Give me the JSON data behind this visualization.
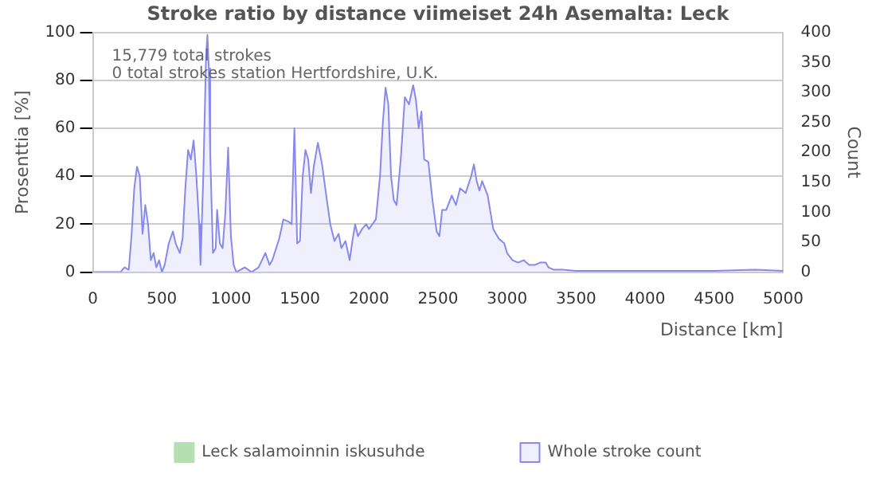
{
  "chart_data": {
    "type": "area",
    "title": "Stroke ratio by distance viimeiset 24h Asemalta: Leck",
    "xlabel": "Distance [km]",
    "ylabel": "Prosenttia [%]",
    "y2label": "Count",
    "annotations": [
      "15,779 total strokes",
      "0 total strokes station Hertfordshire, U.K."
    ],
    "x": [
      0,
      200,
      230,
      260,
      280,
      300,
      320,
      340,
      360,
      380,
      400,
      420,
      440,
      460,
      480,
      500,
      520,
      550,
      580,
      600,
      630,
      650,
      670,
      690,
      710,
      730,
      750,
      770,
      780,
      800,
      820,
      830,
      840,
      850,
      870,
      890,
      900,
      920,
      940,
      960,
      980,
      1000,
      1020,
      1040,
      1100,
      1150,
      1200,
      1250,
      1280,
      1300,
      1350,
      1380,
      1420,
      1440,
      1460,
      1480,
      1500,
      1520,
      1540,
      1560,
      1580,
      1600,
      1630,
      1660,
      1700,
      1720,
      1750,
      1780,
      1800,
      1830,
      1860,
      1880,
      1900,
      1920,
      1950,
      1980,
      2000,
      2050,
      2080,
      2100,
      2120,
      2140,
      2160,
      2180,
      2200,
      2230,
      2260,
      2290,
      2320,
      2340,
      2360,
      2380,
      2400,
      2430,
      2460,
      2490,
      2510,
      2530,
      2560,
      2600,
      2630,
      2660,
      2700,
      2740,
      2760,
      2780,
      2800,
      2820,
      2860,
      2880,
      2900,
      2940,
      2980,
      3000,
      3040,
      3080,
      3120,
      3160,
      3200,
      3240,
      3280,
      3300,
      3340,
      3400,
      3500,
      3600,
      3800,
      4000,
      4200,
      4500,
      4800,
      5000
    ],
    "series": [
      {
        "name": "Leck salamoinnin iskusuhde",
        "type": "line",
        "color": "#b3dfb3",
        "values": [
          null,
          null,
          null,
          null,
          null,
          null,
          null,
          null,
          null,
          null,
          null,
          null,
          null,
          null,
          null,
          null,
          null,
          null,
          null,
          null,
          null,
          null,
          null,
          null,
          null,
          null,
          null,
          null,
          null,
          null,
          null,
          null,
          null,
          null,
          null,
          null,
          null,
          null,
          null,
          null,
          null,
          null,
          null,
          null,
          null,
          null,
          null,
          null,
          null,
          null,
          null,
          null,
          null,
          null,
          null,
          null,
          null,
          null,
          null,
          null,
          null,
          null,
          null,
          null,
          null,
          null,
          null,
          null,
          null,
          null,
          null,
          null,
          null,
          null,
          null,
          null,
          null,
          null,
          null,
          null,
          null,
          null,
          null,
          null,
          null,
          null,
          null,
          null,
          null,
          null,
          null,
          null,
          null,
          null,
          null,
          null,
          null,
          null,
          null,
          null,
          null,
          null,
          null,
          null,
          null,
          null,
          null,
          null,
          null,
          null,
          null,
          null,
          null,
          null,
          null,
          null,
          null,
          null,
          null,
          null,
          null,
          null,
          null,
          null,
          null,
          null,
          null,
          null,
          null,
          null,
          null,
          null
        ]
      },
      {
        "name": "Whole stroke count",
        "type": "area",
        "axis": "y2",
        "color": "#8888ee",
        "values": [
          0,
          0,
          8,
          4,
          60,
          140,
          176,
          160,
          64,
          112,
          80,
          20,
          32,
          8,
          20,
          0,
          12,
          48,
          68,
          48,
          32,
          56,
          140,
          204,
          188,
          220,
          160,
          80,
          12,
          160,
          360,
          396,
          340,
          200,
          32,
          40,
          104,
          48,
          40,
          100,
          208,
          60,
          12,
          0,
          8,
          0,
          8,
          32,
          12,
          20,
          56,
          88,
          84,
          80,
          240,
          48,
          52,
          160,
          204,
          188,
          132,
          176,
          216,
          180,
          112,
          80,
          52,
          64,
          40,
          52,
          20,
          52,
          80,
          60,
          72,
          80,
          72,
          88,
          160,
          248,
          308,
          280,
          160,
          120,
          112,
          188,
          292,
          280,
          312,
          288,
          240,
          268,
          188,
          184,
          120,
          68,
          60,
          104,
          104,
          128,
          112,
          140,
          132,
          160,
          180,
          152,
          136,
          152,
          128,
          100,
          72,
          56,
          48,
          32,
          20,
          16,
          20,
          12,
          12,
          16,
          16,
          8,
          4,
          4,
          2,
          2,
          2,
          2,
          2,
          2,
          4,
          2
        ]
      }
    ],
    "xlim": [
      0,
      5000
    ],
    "xticks": [
      0,
      500,
      1000,
      1500,
      2000,
      2500,
      3000,
      3500,
      4000,
      4500,
      5000
    ],
    "ylim": [
      0,
      100
    ],
    "yticks": [
      0,
      20,
      40,
      60,
      80,
      100
    ],
    "y2lim": [
      0,
      400
    ],
    "y2ticks": [
      0,
      50,
      100,
      150,
      200,
      250,
      300,
      350,
      400
    ],
    "grid": "y",
    "legend": "bottom"
  }
}
